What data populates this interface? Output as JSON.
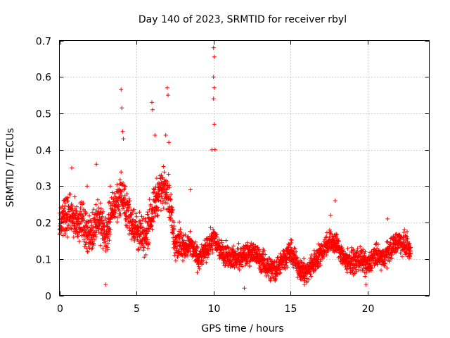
{
  "chart_data": {
    "type": "scatter",
    "title": "Day 140 of 2023, SRMTID for receiver rbyl",
    "xlabel": "GPS time / hours",
    "ylabel": "SRMTID / TECUs",
    "xlim": [
      0,
      24
    ],
    "ylim": [
      0,
      0.7
    ],
    "xticks": [
      "0",
      "5",
      "10",
      "15",
      "20"
    ],
    "xtick_values": [
      0,
      5,
      10,
      15,
      20
    ],
    "yticks": [
      "0",
      "0.1",
      "0.2",
      "0.3",
      "0.4",
      "0.5",
      "0.6",
      "0.7"
    ],
    "ytick_values": [
      0,
      0.1,
      0.2,
      0.3,
      0.4,
      0.5,
      0.6,
      0.7
    ],
    "grid": true,
    "marker": "plus",
    "series": [
      {
        "name": "SRMTID",
        "color": "#ff0000",
        "x_range": [
          0,
          22.8
        ],
        "trend": [
          [
            0.0,
            0.2
          ],
          [
            0.5,
            0.22
          ],
          [
            1.0,
            0.21
          ],
          [
            1.5,
            0.2
          ],
          [
            2.0,
            0.16
          ],
          [
            2.5,
            0.22
          ],
          [
            3.0,
            0.16
          ],
          [
            3.5,
            0.24
          ],
          [
            4.0,
            0.28
          ],
          [
            4.5,
            0.22
          ],
          [
            5.0,
            0.18
          ],
          [
            5.5,
            0.15
          ],
          [
            6.0,
            0.23
          ],
          [
            6.5,
            0.29
          ],
          [
            7.0,
            0.3
          ],
          [
            7.5,
            0.15
          ],
          [
            8.0,
            0.13
          ],
          [
            8.5,
            0.14
          ],
          [
            9.0,
            0.1
          ],
          [
            9.5,
            0.12
          ],
          [
            10.0,
            0.16
          ],
          [
            10.5,
            0.12
          ],
          [
            11.0,
            0.11
          ],
          [
            11.5,
            0.1
          ],
          [
            12.0,
            0.11
          ],
          [
            12.5,
            0.12
          ],
          [
            13.0,
            0.1
          ],
          [
            13.5,
            0.08
          ],
          [
            14.0,
            0.07
          ],
          [
            14.5,
            0.1
          ],
          [
            15.0,
            0.12
          ],
          [
            15.5,
            0.08
          ],
          [
            16.0,
            0.06
          ],
          [
            16.5,
            0.09
          ],
          [
            17.0,
            0.12
          ],
          [
            17.5,
            0.15
          ],
          [
            18.0,
            0.14
          ],
          [
            18.5,
            0.1
          ],
          [
            19.0,
            0.09
          ],
          [
            19.5,
            0.1
          ],
          [
            20.0,
            0.08
          ],
          [
            20.5,
            0.11
          ],
          [
            21.0,
            0.1
          ],
          [
            21.5,
            0.13
          ],
          [
            22.0,
            0.15
          ],
          [
            22.5,
            0.14
          ],
          [
            22.8,
            0.12
          ]
        ],
        "peaks": [
          [
            4.0,
            0.565
          ],
          [
            4.05,
            0.515
          ],
          [
            6.0,
            0.53
          ],
          [
            6.05,
            0.51
          ],
          [
            7.0,
            0.57
          ],
          [
            7.05,
            0.55
          ],
          [
            10.0,
            0.68
          ],
          [
            10.05,
            0.655
          ],
          [
            10.0,
            0.6
          ],
          [
            10.05,
            0.57
          ],
          [
            10.0,
            0.54
          ],
          [
            10.05,
            0.47
          ],
          [
            4.1,
            0.45
          ],
          [
            4.15,
            0.43
          ],
          [
            6.2,
            0.44
          ],
          [
            6.9,
            0.44
          ],
          [
            7.1,
            0.42
          ],
          [
            9.9,
            0.4
          ],
          [
            10.1,
            0.4
          ],
          [
            0.8,
            0.35
          ],
          [
            1.8,
            0.3
          ],
          [
            2.4,
            0.36
          ],
          [
            3.3,
            0.3
          ],
          [
            17.9,
            0.26
          ],
          [
            17.6,
            0.22
          ],
          [
            8.5,
            0.29
          ],
          [
            21.3,
            0.21
          ],
          [
            3.0,
            0.03
          ],
          [
            12.0,
            0.02
          ],
          [
            19.9,
            0.03
          ],
          [
            14.0,
            0.04
          ],
          [
            15.9,
            0.03
          ],
          [
            13.7,
            0.04
          ]
        ]
      }
    ]
  }
}
